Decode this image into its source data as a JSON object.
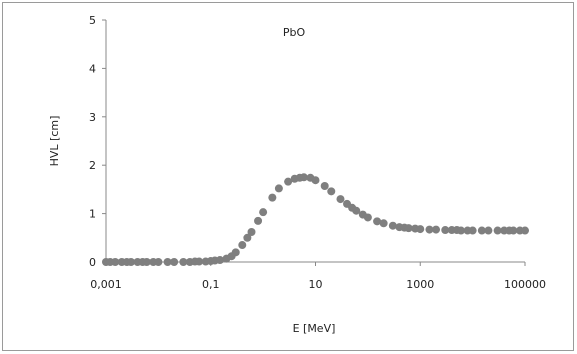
{
  "chart_data": {
    "type": "scatter",
    "title": "PbO",
    "xlabel": "E [MeV]",
    "ylabel": "HVL [cm]",
    "xscale": "log",
    "xlim": [
      0.001,
      100000
    ],
    "ylim": [
      0,
      5
    ],
    "x_ticks": [
      "0,001",
      "0,1",
      "10",
      "1000",
      "100000"
    ],
    "y_ticks": [
      "0",
      "1",
      "2",
      "3",
      "4",
      "5"
    ],
    "grid": false,
    "legend": "none",
    "marker_color": "#7f7f7f",
    "series": [
      {
        "x": [
          0.001,
          0.0012,
          0.0015,
          0.002,
          0.0025,
          0.003,
          0.004,
          0.005,
          0.006,
          0.008,
          0.01,
          0.015,
          0.02,
          0.03,
          0.04,
          0.05,
          0.06,
          0.08,
          0.1,
          0.12,
          0.15,
          0.2,
          0.25,
          0.3,
          0.4,
          0.5,
          0.6,
          0.8,
          1,
          1.5,
          2,
          3,
          4,
          5,
          6,
          8,
          10,
          15,
          20,
          30,
          40,
          50,
          60,
          80,
          100,
          150,
          200,
          300,
          400,
          500,
          600,
          800,
          1000,
          1500,
          2000,
          3000,
          4000,
          5000,
          6000,
          8000,
          10000,
          15000,
          20000,
          30000,
          40000,
          50000,
          60000,
          80000,
          100000
        ],
        "y": [
          0.0,
          0.0,
          0.0,
          0.0,
          0.0,
          0.0,
          0.0,
          0.0,
          0.0,
          0.0,
          0.0,
          0.0,
          0.0,
          0.0,
          0.0,
          0.01,
          0.01,
          0.01,
          0.02,
          0.03,
          0.04,
          0.07,
          0.12,
          0.2,
          0.35,
          0.5,
          0.62,
          0.85,
          1.03,
          1.33,
          1.52,
          1.66,
          1.72,
          1.74,
          1.75,
          1.74,
          1.69,
          1.57,
          1.46,
          1.3,
          1.2,
          1.12,
          1.06,
          0.98,
          0.92,
          0.84,
          0.8,
          0.75,
          0.72,
          0.71,
          0.7,
          0.69,
          0.68,
          0.67,
          0.67,
          0.66,
          0.66,
          0.66,
          0.65,
          0.65,
          0.65,
          0.65,
          0.65,
          0.65,
          0.65,
          0.65,
          0.65,
          0.65,
          0.65
        ]
      }
    ]
  }
}
